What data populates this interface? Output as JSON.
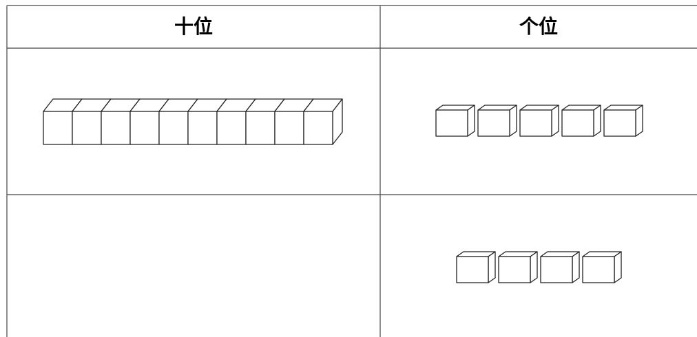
{
  "table": {
    "headers": [
      "十位",
      "个位"
    ]
  }
}
